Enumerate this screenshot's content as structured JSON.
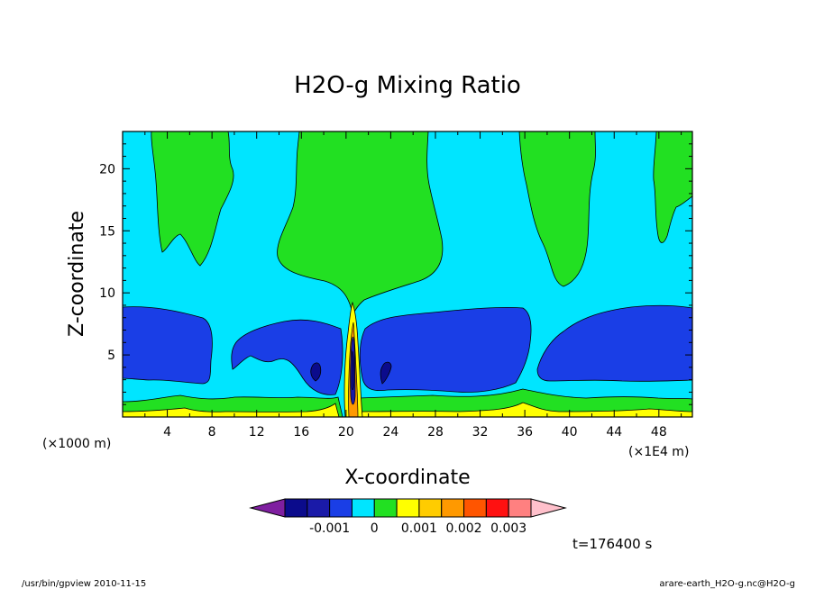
{
  "chart_data": {
    "type": "contour",
    "title": "H2O-g Mixing Ratio",
    "xlabel": "X-coordinate",
    "ylabel": "Z-coordinate",
    "x_unit_left": "(×1000 m)",
    "x_unit_right": "(×1E4 m)",
    "x_range": [
      0,
      51
    ],
    "y_range": [
      0,
      23
    ],
    "x_ticks": [
      4,
      8,
      12,
      16,
      20,
      24,
      28,
      32,
      36,
      40,
      44,
      48
    ],
    "y_ticks": [
      5,
      10,
      15,
      20
    ],
    "colorbar": {
      "boundaries": [
        -0.0025,
        -0.002,
        -0.0015,
        -0.001,
        -0.0005,
        0,
        0.0005,
        0.001,
        0.0015,
        0.002,
        0.0025,
        0.003,
        0.0035
      ],
      "colors": [
        "#7f1fa0",
        "#0b0b8c",
        "#1a1aa8",
        "#1a3ee6",
        "#00e5ff",
        "#22e022",
        "#ffff00",
        "#ffcc00",
        "#ff9900",
        "#ff5500",
        "#ff1111",
        "#ff8080",
        "#ffc0cb"
      ],
      "tick_labels": [
        "-0.001",
        "0",
        "0.001",
        "0.002",
        "0.003"
      ],
      "tick_values": [
        -0.001,
        0,
        0.001,
        0.002,
        0.003
      ]
    },
    "regions": [
      {
        "level": "dark_blue",
        "value_range": [
          -0.001,
          -0.0005
        ],
        "description": "moist anomaly band z~2.5-8.5"
      },
      {
        "level": "cyan",
        "value_range": [
          -0.0005,
          0
        ],
        "description": "background"
      },
      {
        "level": "green",
        "value_range": [
          0,
          0.0005
        ],
        "description": "upper plumes and surface layer"
      },
      {
        "level": "yellow",
        "value_range": [
          0.0005,
          0.001
        ],
        "description": "near-surface and central column"
      }
    ]
  },
  "annotations": {
    "time": "t=176400 s",
    "footer_left": "/usr/bin/gpview   2010-11-15",
    "footer_right": "arare-earth_H2O-g.nc@H2O-g"
  }
}
